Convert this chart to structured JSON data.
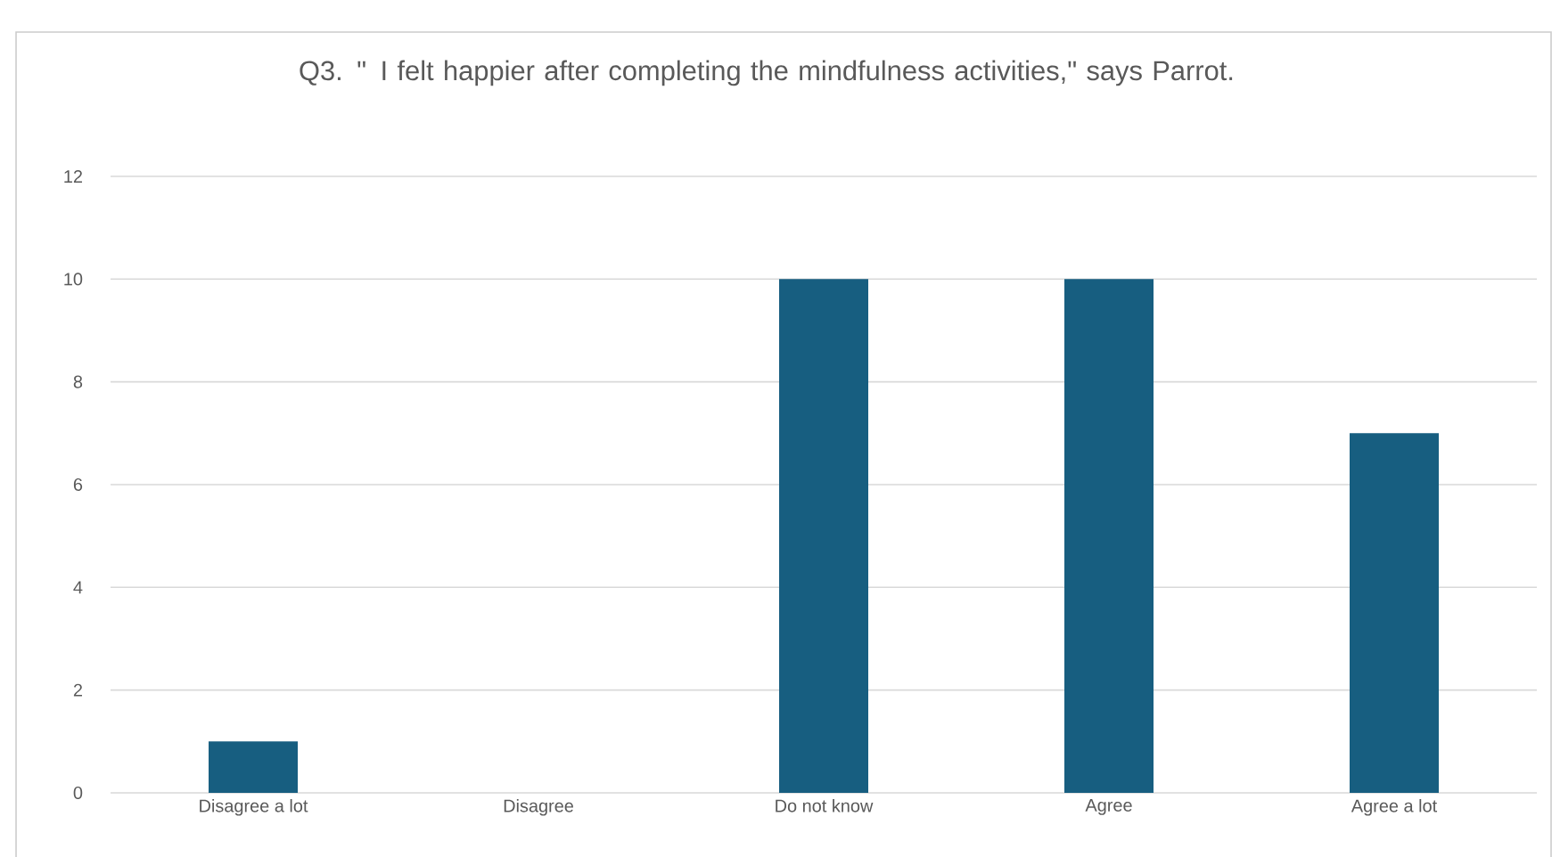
{
  "chart_data": {
    "type": "bar",
    "title": "Q3. \" I felt happier after completing the mindfulness activities,\" says Parrot.",
    "categories": [
      "Disagree a lot",
      "Disagree",
      "Do not know",
      "Agree",
      "Agree a lot"
    ],
    "values": [
      1,
      0,
      10,
      10,
      7
    ],
    "color": "#175e80",
    "ylim": [
      0,
      12
    ],
    "yticks": [
      0,
      2,
      4,
      6,
      8,
      10,
      12
    ],
    "grid": "y"
  }
}
